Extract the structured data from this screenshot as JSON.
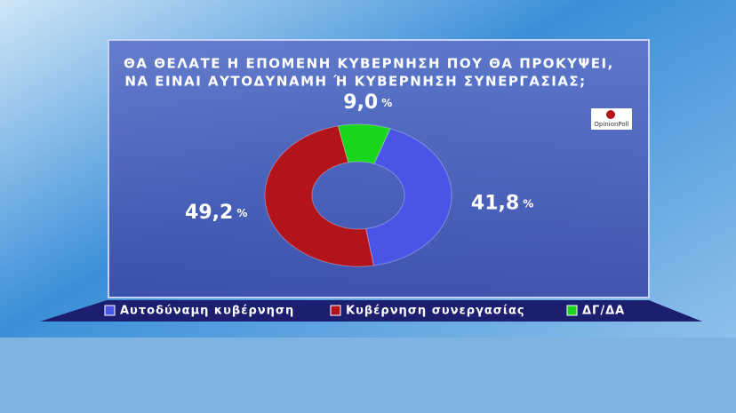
{
  "chart_data": {
    "type": "donut",
    "title_lines": [
      "ΘΑ ΘΕΛΑΤΕ Η ΕΠΟΜΕΝΗ ΚΥΒΕΡΝΗΣΗ ΠΟΥ ΘΑ ΠΡΟΚΥΨΕΙ,",
      "ΝΑ ΕΙΝΑΙ ΑΥΤΟΔΥΝΑΜΗ Ή ΚΥΒΕΡΝΗΣΗ ΣΥΝΕΡΓΑΣΙΑΣ;"
    ],
    "categories": [
      "Αυτοδύναμη κυβέρνηση",
      "Κυβέρνηση συνεργασίας",
      "ΔΓ/ΔΑ"
    ],
    "values": [
      41.8,
      49.2,
      9.0
    ],
    "value_labels": [
      "41,8",
      "49,2",
      "9,0"
    ],
    "unit": "%",
    "colors": [
      "#4a55e8",
      "#b3141c",
      "#19d61c"
    ],
    "logo": "OpinionPoll"
  }
}
